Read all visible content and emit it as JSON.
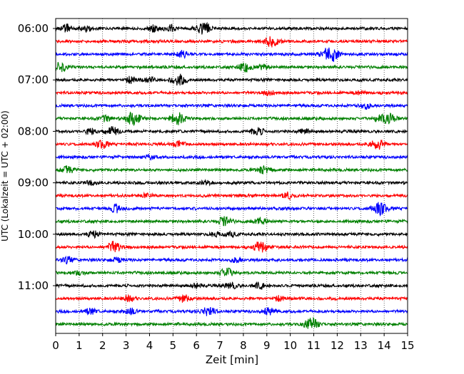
{
  "chart_data": {
    "type": "line",
    "title": "",
    "xlabel": "Zeit  [min]",
    "ylabel": "UTC (Lokalzeit = UTC + 02:00)",
    "xlim": [
      0,
      15
    ],
    "x_ticks": [
      "0",
      "1",
      "2",
      "3",
      "4",
      "5",
      "6",
      "7",
      "8",
      "9",
      "10",
      "11",
      "12",
      "13",
      "14",
      "15"
    ],
    "y_tick_labels": [
      "06:00",
      "07:00",
      "08:00",
      "09:00",
      "10:00",
      "11:00"
    ],
    "grid": "vertical dotted at each minute",
    "trace_colors": [
      "#000000",
      "#ff0000",
      "#0000ff",
      "#008000"
    ],
    "traces": [
      {
        "start": "06:00",
        "events": [
          [
            0.45,
            5
          ],
          [
            1.3,
            4
          ],
          [
            4.2,
            4
          ],
          [
            4.9,
            4
          ],
          [
            6.3,
            8
          ]
        ]
      },
      {
        "start": "06:15",
        "events": [
          [
            9.2,
            7
          ]
        ]
      },
      {
        "start": "06:30",
        "events": [
          [
            5.4,
            4
          ],
          [
            11.7,
            10
          ]
        ]
      },
      {
        "start": "06:45",
        "events": [
          [
            0.15,
            7
          ],
          [
            8.1,
            6
          ],
          [
            8.8,
            4
          ]
        ]
      },
      {
        "start": "07:00",
        "events": [
          [
            3.2,
            4
          ],
          [
            4.0,
            3
          ],
          [
            5.25,
            7
          ]
        ]
      },
      {
        "start": "07:15",
        "events": [
          [
            9.1,
            3
          ],
          [
            13.0,
            3
          ]
        ]
      },
      {
        "start": "07:30",
        "events": [
          [
            13.2,
            4
          ]
        ]
      },
      {
        "start": "07:45",
        "events": [
          [
            2.1,
            4
          ],
          [
            3.3,
            8
          ],
          [
            5.2,
            8
          ],
          [
            13.8,
            4
          ],
          [
            14.2,
            6
          ]
        ]
      },
      {
        "start": "08:00",
        "events": [
          [
            1.5,
            4
          ],
          [
            2.4,
            6
          ],
          [
            8.6,
            5
          ],
          [
            10.6,
            3
          ]
        ]
      },
      {
        "start": "08:15",
        "events": [
          [
            2.0,
            5
          ],
          [
            5.3,
            4
          ],
          [
            13.7,
            7
          ]
        ]
      },
      {
        "start": "08:30",
        "events": [
          [
            4.0,
            3
          ]
        ]
      },
      {
        "start": "08:45",
        "events": [
          [
            0.5,
            5
          ],
          [
            8.9,
            5
          ]
        ]
      },
      {
        "start": "09:00",
        "events": [
          [
            1.5,
            3
          ],
          [
            6.4,
            3
          ]
        ]
      },
      {
        "start": "09:15",
        "events": [
          [
            3.9,
            3
          ],
          [
            9.9,
            4
          ]
        ]
      },
      {
        "start": "09:30",
        "events": [
          [
            2.6,
            5
          ],
          [
            13.8,
            8
          ]
        ]
      },
      {
        "start": "09:45",
        "events": [
          [
            7.2,
            6
          ],
          [
            8.7,
            5
          ]
        ]
      },
      {
        "start": "10:00",
        "events": [
          [
            1.6,
            4
          ],
          [
            6.8,
            3
          ],
          [
            7.5,
            3
          ]
        ]
      },
      {
        "start": "10:15",
        "events": [
          [
            2.5,
            7
          ],
          [
            8.7,
            7
          ]
        ]
      },
      {
        "start": "10:30",
        "events": [
          [
            0.5,
            4
          ],
          [
            2.6,
            3
          ],
          [
            7.7,
            3
          ]
        ]
      },
      {
        "start": "10:45",
        "events": [
          [
            1.0,
            3
          ],
          [
            7.3,
            6
          ]
        ]
      },
      {
        "start": "11:00",
        "events": [
          [
            6.0,
            3
          ],
          [
            7.5,
            4
          ],
          [
            8.7,
            4
          ]
        ]
      },
      {
        "start": "11:15",
        "events": [
          [
            3.1,
            4
          ],
          [
            5.5,
            5
          ],
          [
            9.5,
            3
          ]
        ]
      },
      {
        "start": "11:30",
        "events": [
          [
            1.5,
            4
          ],
          [
            3.2,
            4
          ],
          [
            6.5,
            6
          ],
          [
            9.1,
            5
          ]
        ]
      },
      {
        "start": "11:45",
        "events": [
          [
            10.9,
            8
          ]
        ]
      }
    ]
  }
}
